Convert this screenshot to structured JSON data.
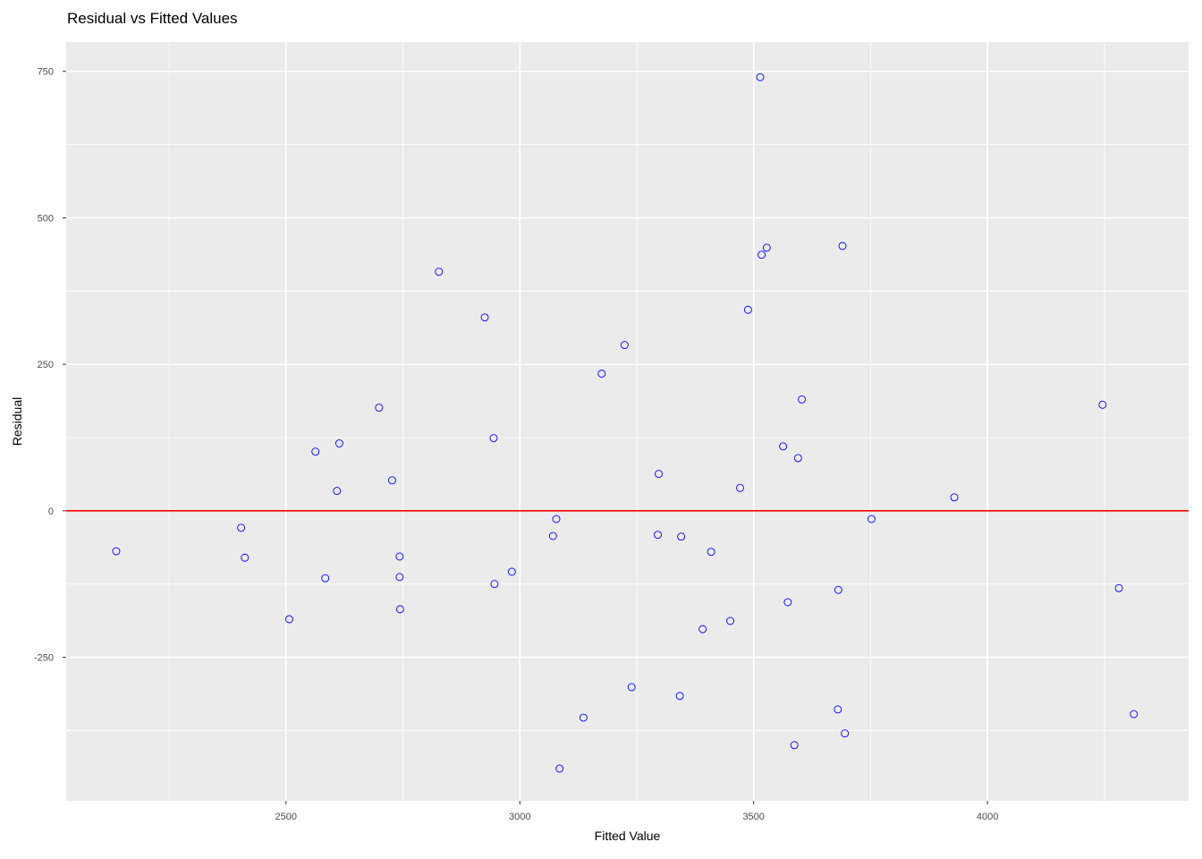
{
  "chart_data": {
    "type": "scatter",
    "title": "Residual vs Fitted Values",
    "xlabel": "Fitted Value",
    "ylabel": "Residual",
    "xlim": [
      2030,
      4430
    ],
    "ylim": [
      -495,
      800
    ],
    "x_ticks": [
      2500,
      3000,
      3500,
      4000
    ],
    "x_minor": [
      2250,
      2750,
      3250,
      3750,
      4250
    ],
    "y_ticks": [
      -250,
      0,
      250,
      500,
      750
    ],
    "y_minor": [
      -375,
      -125,
      125,
      375,
      625
    ],
    "grid": true,
    "legend": "none",
    "reference_line": {
      "y": 0,
      "color": "#ff0000"
    },
    "colors": {
      "point": "#0000ff",
      "panel": "#ebebeb",
      "grid": "#ffffff",
      "axis_text": "#4d4d4d"
    },
    "points": [
      {
        "x": 2137,
        "y": -69
      },
      {
        "x": 2404,
        "y": -29
      },
      {
        "x": 2412,
        "y": -80
      },
      {
        "x": 2507,
        "y": -185
      },
      {
        "x": 2563,
        "y": 101
      },
      {
        "x": 2584,
        "y": -115
      },
      {
        "x": 2609,
        "y": 34
      },
      {
        "x": 2614,
        "y": 115
      },
      {
        "x": 2699,
        "y": 176
      },
      {
        "x": 2727,
        "y": 52
      },
      {
        "x": 2743,
        "y": -78
      },
      {
        "x": 2743,
        "y": -113
      },
      {
        "x": 2744,
        "y": -168
      },
      {
        "x": 2827,
        "y": 408
      },
      {
        "x": 2925,
        "y": 330
      },
      {
        "x": 2944,
        "y": 124
      },
      {
        "x": 2946,
        "y": -125
      },
      {
        "x": 2983,
        "y": -104
      },
      {
        "x": 3071,
        "y": -43
      },
      {
        "x": 3078,
        "y": -14
      },
      {
        "x": 3085,
        "y": -440
      },
      {
        "x": 3136,
        "y": -353
      },
      {
        "x": 3175,
        "y": 234
      },
      {
        "x": 3224,
        "y": 283
      },
      {
        "x": 3239,
        "y": -301
      },
      {
        "x": 3295,
        "y": -41
      },
      {
        "x": 3297,
        "y": 63
      },
      {
        "x": 3342,
        "y": -316
      },
      {
        "x": 3345,
        "y": -44
      },
      {
        "x": 3391,
        "y": -202
      },
      {
        "x": 3409,
        "y": -70
      },
      {
        "x": 3450,
        "y": -188
      },
      {
        "x": 3471,
        "y": 39
      },
      {
        "x": 3488,
        "y": 343
      },
      {
        "x": 3514,
        "y": 740
      },
      {
        "x": 3517,
        "y": 437
      },
      {
        "x": 3528,
        "y": 449
      },
      {
        "x": 3563,
        "y": 110
      },
      {
        "x": 3573,
        "y": -156
      },
      {
        "x": 3587,
        "y": -400
      },
      {
        "x": 3595,
        "y": 90
      },
      {
        "x": 3603,
        "y": 190
      },
      {
        "x": 3680,
        "y": -339
      },
      {
        "x": 3681,
        "y": -135
      },
      {
        "x": 3690,
        "y": 452
      },
      {
        "x": 3695,
        "y": -380
      },
      {
        "x": 3752,
        "y": -14
      },
      {
        "x": 3929,
        "y": 23
      },
      {
        "x": 4246,
        "y": 181
      },
      {
        "x": 4281,
        "y": -132
      },
      {
        "x": 4313,
        "y": -347
      }
    ]
  }
}
